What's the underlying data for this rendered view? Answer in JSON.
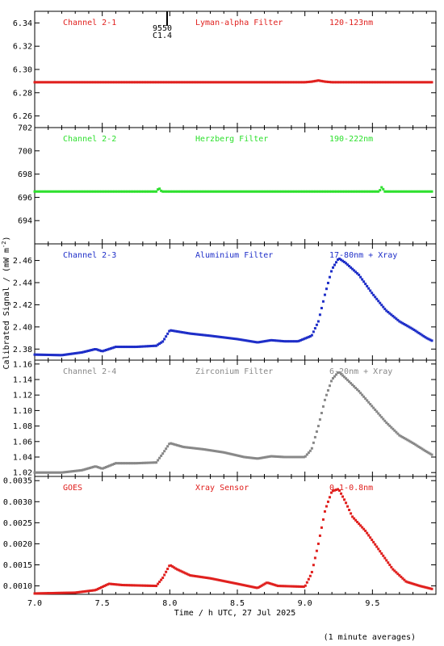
{
  "chart_data": [
    {
      "type": "scatter",
      "panel": "Channel 2-1",
      "labels": [
        "Channel 2-1",
        "Lyman-alpha Filter",
        "120-123nm"
      ],
      "color": "#e0201e",
      "ylim": [
        6.25,
        6.35
      ],
      "yticks": [
        6.26,
        6.28,
        6.3,
        6.32,
        6.34
      ],
      "ytick_labels": [
        "6.26",
        "6.28",
        "6.30",
        "6.32",
        "6.34"
      ],
      "annotation": {
        "x": 7.98,
        "lines": [
          "9550",
          "C1.4"
        ]
      },
      "points": [
        [
          7.0,
          6.289
        ],
        [
          7.5,
          6.289
        ],
        [
          8.0,
          6.289
        ],
        [
          8.5,
          6.289
        ],
        [
          9.0,
          6.289
        ],
        [
          9.05,
          6.2895
        ],
        [
          9.1,
          6.2905
        ],
        [
          9.15,
          6.2895
        ],
        [
          9.2,
          6.289
        ],
        [
          9.5,
          6.289
        ],
        [
          9.95,
          6.289
        ]
      ]
    },
    {
      "type": "scatter",
      "panel": "Channel 2-2",
      "labels": [
        "Channel 2-2",
        "Herzberg Filter",
        "190-222nm"
      ],
      "color": "#2ee02e",
      "ylim": [
        692,
        702
      ],
      "yticks": [
        694,
        696,
        698,
        700,
        702
      ],
      "ytick_labels": [
        "694",
        "696",
        "698",
        "700",
        "702"
      ],
      "points": [
        [
          7.0,
          696.5
        ],
        [
          7.5,
          696.5
        ],
        [
          7.9,
          696.5
        ],
        [
          7.92,
          696.8
        ],
        [
          7.94,
          696.5
        ],
        [
          8.5,
          696.5
        ],
        [
          9.0,
          696.5
        ],
        [
          9.55,
          696.5
        ],
        [
          9.57,
          696.9
        ],
        [
          9.59,
          696.5
        ],
        [
          9.95,
          696.5
        ]
      ]
    },
    {
      "type": "scatter",
      "panel": "Channel 2-3",
      "labels": [
        "Channel 2-3",
        "Aluminium Filter",
        "17-80nm + Xray"
      ],
      "color": "#1e2ec8",
      "ylim": [
        2.37,
        2.475
      ],
      "yticks": [
        2.38,
        2.4,
        2.42,
        2.44,
        2.46
      ],
      "ytick_labels": [
        "2.38",
        "2.40",
        "2.42",
        "2.44",
        "2.46"
      ],
      "points": [
        [
          7.0,
          2.375
        ],
        [
          7.2,
          2.3745
        ],
        [
          7.35,
          2.377
        ],
        [
          7.45,
          2.38
        ],
        [
          7.5,
          2.378
        ],
        [
          7.6,
          2.382
        ],
        [
          7.75,
          2.382
        ],
        [
          7.9,
          2.383
        ],
        [
          7.95,
          2.387
        ],
        [
          8.0,
          2.397
        ],
        [
          8.05,
          2.396
        ],
        [
          8.15,
          2.394
        ],
        [
          8.3,
          2.392
        ],
        [
          8.5,
          2.389
        ],
        [
          8.65,
          2.386
        ],
        [
          8.75,
          2.388
        ],
        [
          8.85,
          2.387
        ],
        [
          8.95,
          2.387
        ],
        [
          9.05,
          2.392
        ],
        [
          9.1,
          2.405
        ],
        [
          9.15,
          2.43
        ],
        [
          9.2,
          2.452
        ],
        [
          9.25,
          2.462
        ],
        [
          9.3,
          2.458
        ],
        [
          9.4,
          2.447
        ],
        [
          9.5,
          2.43
        ],
        [
          9.6,
          2.415
        ],
        [
          9.7,
          2.405
        ],
        [
          9.8,
          2.398
        ],
        [
          9.9,
          2.39
        ],
        [
          9.95,
          2.387
        ]
      ]
    },
    {
      "type": "scatter",
      "panel": "Channel 2-4",
      "labels": [
        "Channel 2-4",
        "Zirconium Filter",
        "6-20nm + Xray"
      ],
      "color": "#888888",
      "ylim": [
        1.015,
        1.165
      ],
      "yticks": [
        1.02,
        1.04,
        1.06,
        1.08,
        1.1,
        1.12,
        1.14,
        1.16
      ],
      "ytick_labels": [
        "1.02",
        "1.04",
        "1.06",
        "1.08",
        "1.10",
        "1.12",
        "1.14",
        "1.16"
      ],
      "points": [
        [
          7.0,
          1.02
        ],
        [
          7.2,
          1.02
        ],
        [
          7.35,
          1.023
        ],
        [
          7.45,
          1.028
        ],
        [
          7.5,
          1.025
        ],
        [
          7.6,
          1.032
        ],
        [
          7.75,
          1.032
        ],
        [
          7.9,
          1.033
        ],
        [
          7.95,
          1.045
        ],
        [
          8.0,
          1.058
        ],
        [
          8.1,
          1.053
        ],
        [
          8.25,
          1.05
        ],
        [
          8.4,
          1.046
        ],
        [
          8.55,
          1.04
        ],
        [
          8.65,
          1.038
        ],
        [
          8.75,
          1.041
        ],
        [
          8.85,
          1.04
        ],
        [
          9.0,
          1.04
        ],
        [
          9.05,
          1.05
        ],
        [
          9.1,
          1.08
        ],
        [
          9.15,
          1.115
        ],
        [
          9.2,
          1.14
        ],
        [
          9.25,
          1.15
        ],
        [
          9.3,
          1.142
        ],
        [
          9.4,
          1.125
        ],
        [
          9.5,
          1.105
        ],
        [
          9.6,
          1.085
        ],
        [
          9.7,
          1.068
        ],
        [
          9.8,
          1.058
        ],
        [
          9.9,
          1.047
        ],
        [
          9.95,
          1.042
        ]
      ]
    },
    {
      "type": "scatter",
      "panel": "GOES",
      "labels": [
        "GOES",
        "Xray Sensor",
        "0.1-0.8nm"
      ],
      "color": "#e0201e",
      "ylim": [
        0.0008,
        0.0036
      ],
      "yticks": [
        0.001,
        0.0015,
        0.002,
        0.0025,
        0.003,
        0.0035
      ],
      "ytick_labels": [
        "0.0010",
        "0.0015",
        "0.0020",
        "0.0025",
        "0.0030",
        "0.0035"
      ],
      "points": [
        [
          7.0,
          0.00082
        ],
        [
          7.3,
          0.00084
        ],
        [
          7.45,
          0.0009
        ],
        [
          7.55,
          0.00105
        ],
        [
          7.65,
          0.00102
        ],
        [
          7.9,
          0.001
        ],
        [
          7.95,
          0.0012
        ],
        [
          8.0,
          0.0015
        ],
        [
          8.05,
          0.0014
        ],
        [
          8.15,
          0.00125
        ],
        [
          8.3,
          0.00118
        ],
        [
          8.5,
          0.00105
        ],
        [
          8.65,
          0.00095
        ],
        [
          8.72,
          0.00108
        ],
        [
          8.8,
          0.001
        ],
        [
          9.0,
          0.00098
        ],
        [
          9.05,
          0.0013
        ],
        [
          9.1,
          0.002
        ],
        [
          9.15,
          0.0028
        ],
        [
          9.2,
          0.00325
        ],
        [
          9.25,
          0.0033
        ],
        [
          9.3,
          0.003
        ],
        [
          9.35,
          0.00265
        ],
        [
          9.45,
          0.0023
        ],
        [
          9.55,
          0.00185
        ],
        [
          9.65,
          0.0014
        ],
        [
          9.75,
          0.0011
        ],
        [
          9.85,
          0.001
        ],
        [
          9.95,
          0.00092
        ]
      ]
    }
  ],
  "x_axis": {
    "label": "Time / h UTC, 27 Jul 2025",
    "xlim": [
      7.0,
      9.97
    ],
    "ticks": [
      7.0,
      7.5,
      8.0,
      8.5,
      9.0,
      9.5
    ],
    "tick_labels": [
      "7.0",
      "7.5",
      "8.0",
      "8.5",
      "9.0",
      "9.5"
    ]
  },
  "y_axis_label": "Calibrated Signal / (mW m",
  "y_axis_label_sup": "-2",
  "y_axis_label_end": ")",
  "footer_note": "(1 minute averages)"
}
